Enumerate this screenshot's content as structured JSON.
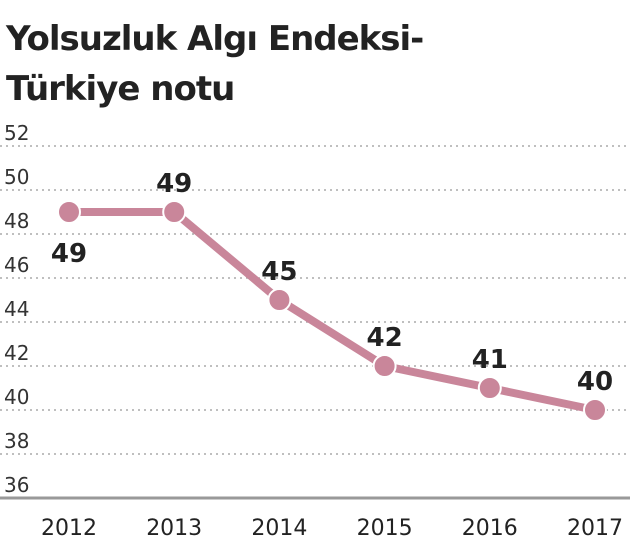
{
  "chart_data": {
    "type": "line",
    "title_lines": [
      "Yolsuzluk Algı Endeksi-",
      "Türkiye notu"
    ],
    "x": [
      2012,
      2013,
      2014,
      2015,
      2016,
      2017
    ],
    "series": [
      {
        "color": "#c9869a",
        "values": [
          49,
          49,
          45,
          42,
          41,
          40
        ]
      }
    ],
    "xlim": [
      2012,
      2017
    ],
    "ylim": [
      36,
      52
    ],
    "yticks": [
      36,
      38,
      40,
      42,
      44,
      46,
      48,
      50,
      52
    ],
    "grid": true
  }
}
